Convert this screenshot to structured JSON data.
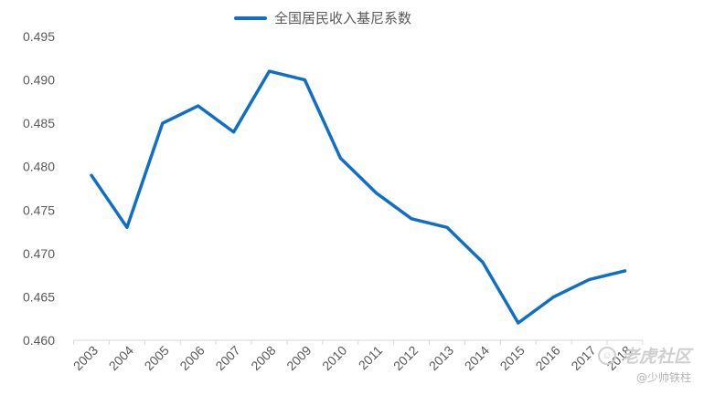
{
  "chart_data": {
    "type": "line",
    "title": "",
    "xlabel": "",
    "ylabel": "",
    "categories": [
      "2003",
      "2004",
      "2005",
      "2006",
      "2007",
      "2008",
      "2009",
      "2010",
      "2011",
      "2012",
      "2013",
      "2014",
      "2015",
      "2016",
      "2017",
      "2018"
    ],
    "series": [
      {
        "name": "全国居民收入基尼系数",
        "color": "#0f6fc6",
        "values": [
          0.479,
          0.473,
          0.485,
          0.487,
          0.484,
          0.491,
          0.49,
          0.481,
          0.477,
          0.474,
          0.473,
          0.469,
          0.462,
          0.465,
          0.467,
          0.468
        ]
      }
    ],
    "ylim": [
      0.46,
      0.495
    ],
    "yticks": [
      "0.460",
      "0.465",
      "0.470",
      "0.475",
      "0.480",
      "0.485",
      "0.490",
      "0.495"
    ],
    "grid": false,
    "legend": "top"
  },
  "watermark": {
    "brand": "老虎社区",
    "user": "@少帅铁柱",
    "icon": "tiger-logo-icon"
  }
}
